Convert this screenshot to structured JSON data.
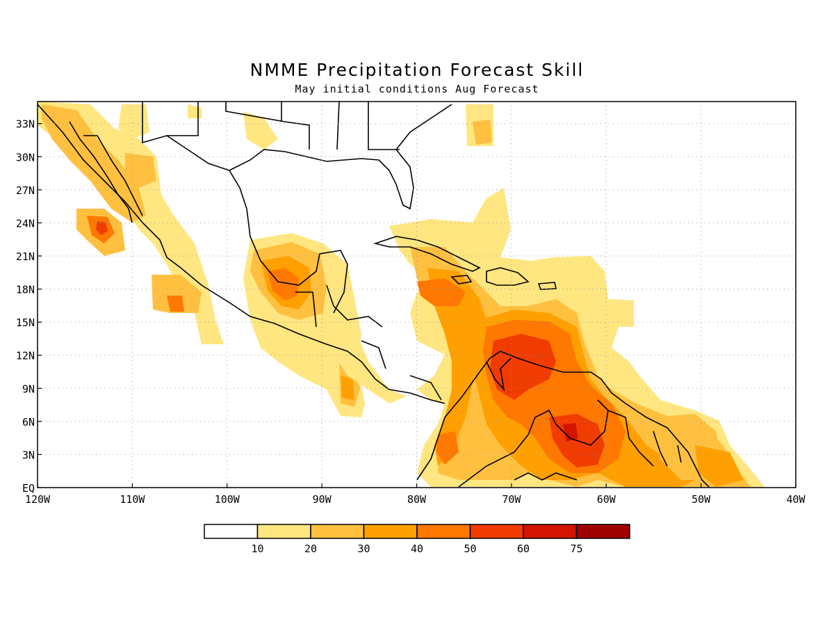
{
  "title": "NMME Precipitation Forecast Skill",
  "subtitle": "May initial conditions  Aug Forecast",
  "map": {
    "lon_range": [
      -120,
      -40
    ],
    "lat_range": [
      0,
      35
    ],
    "lat_labels": [
      "33N",
      "30N",
      "27N",
      "24N",
      "21N",
      "18N",
      "15N",
      "12N",
      "9N",
      "6N",
      "3N",
      "EQ"
    ],
    "lon_labels": [
      "120W",
      "110W",
      "100W",
      "90W",
      "80W",
      "70W",
      "60W",
      "50W",
      "40W"
    ],
    "grid": "dotted"
  },
  "colorbar": {
    "ticks": [
      "10",
      "20",
      "30",
      "40",
      "50",
      "60",
      "75"
    ],
    "colors": [
      "#ffffff",
      "#ffe680",
      "#ffc040",
      "#ffa000",
      "#ff7800",
      "#f03c00",
      "#d21400",
      "#a00000"
    ]
  }
}
